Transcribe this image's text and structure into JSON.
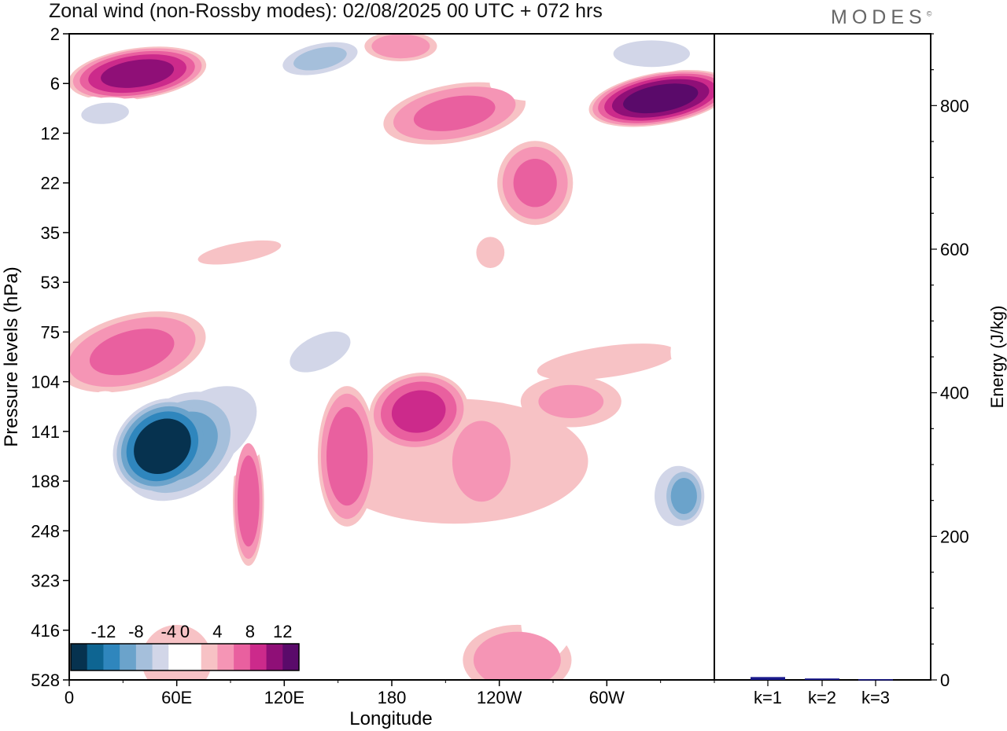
{
  "header": {
    "title": "Zonal wind (non-Rossby modes):  02/08/2025  00 UTC  + 072 hrs",
    "logo": "MODES",
    "logo_mark": "©"
  },
  "chart_data": [
    {
      "type": "heatmap",
      "title": "Zonal wind (non-Rossby modes):  02/08/2025  00 UTC  + 072 hrs",
      "xlabel": "Longitude",
      "ylabel": "Pressure levels (hPa)",
      "x_ticks": [
        "0",
        "60E",
        "120E",
        "180",
        "120W",
        "60W"
      ],
      "x_tick_degrees": [
        0,
        60,
        120,
        180,
        240,
        300
      ],
      "xlim": [
        0,
        360
      ],
      "y_levels": [
        "2",
        "6",
        "12",
        "22",
        "35",
        "53",
        "75",
        "104",
        "141",
        "188",
        "248",
        "323",
        "416",
        "528"
      ],
      "colorbar": {
        "tick_labels": [
          "-12",
          "-8",
          "-4",
          "0",
          "4",
          "8",
          "12"
        ],
        "levels": [
          -14,
          -12,
          -10,
          -8,
          -6,
          -4,
          -2,
          2,
          4,
          6,
          8,
          10,
          12,
          14
        ],
        "colors": [
          "#06324f",
          "#0e6592",
          "#2f86bd",
          "#6ba3cb",
          "#a5bfdb",
          "#d2d6e8",
          "#ffffff",
          "#ffffff",
          "#f7c2c5",
          "#f595b5",
          "#e9609f",
          "#cc2a8b",
          "#8f0f77",
          "#5a0a6a"
        ]
      },
      "features": [
        {
          "name": "strong negative jet core",
          "lon": 52,
          "level": "141",
          "value": -14
        },
        {
          "name": "positive upper band",
          "lon": 40,
          "level": "6",
          "value": 10
        },
        {
          "name": "positive upper maximum",
          "lon": 335,
          "level": "6",
          "value": 12
        },
        {
          "name": "positive lower stratosphere band",
          "lon": 30,
          "level": "75",
          "value": 6
        },
        {
          "name": "positive upper troposphere region",
          "lon": 195,
          "level": "104",
          "value": 8
        },
        {
          "name": "negative upper troposphere",
          "lon": 340,
          "level": "188",
          "value": -10
        }
      ]
    },
    {
      "type": "bar",
      "categories": [
        "k=1",
        "k=2",
        "k=3"
      ],
      "values": [
        4,
        2,
        1
      ],
      "ylabel": "Energy (J/kg)",
      "ylim": [
        0,
        900
      ],
      "y_ticks": [
        "0",
        "200",
        "400",
        "600",
        "800"
      ],
      "colors": [
        "#1a1a8c",
        "#1a1a8c",
        "#1a1a8c"
      ]
    }
  ]
}
